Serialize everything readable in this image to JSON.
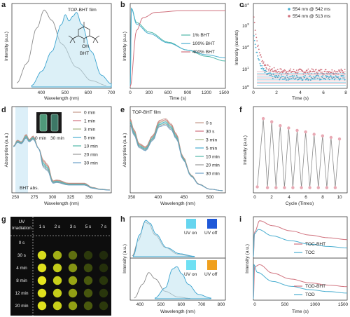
{
  "panels": {
    "a": {
      "letter": "a",
      "legend": "TOP-BHT film",
      "molecule_label": "BHT",
      "oh_label": "OH",
      "ylabel": "Intensity (a.u.)",
      "xlabel": "Wavelength (nm)",
      "xticks": [
        "400",
        "500",
        "600",
        "700"
      ]
    },
    "b": {
      "letter": "b",
      "ylabel": "Intensity (a.u.)",
      "xlabel": "Time (s)",
      "xticks": [
        "0",
        "300",
        "600",
        "900",
        "1200",
        "1500"
      ],
      "legend": [
        "1% BHT",
        "100% BHT",
        "400% BHT"
      ]
    },
    "c": {
      "letter": "c",
      "ylabel": "Intensity (counts)",
      "xlabel": "Time (s)",
      "xticks": [
        "0",
        "2",
        "4",
        "6",
        "8"
      ],
      "yticks": [
        {
          "b": "10",
          "e": "0"
        },
        {
          "b": "10",
          "e": "1"
        },
        {
          "b": "10",
          "e": "2"
        },
        {
          "b": "10",
          "e": "3"
        },
        {
          "b": "10",
          "e": "4"
        }
      ],
      "legend": [
        "554 nm @ 542 ms",
        "554 nm @ 513 ms"
      ]
    },
    "d": {
      "letter": "d",
      "ylabel": "Absorption (a.u.)",
      "xlabel": "Wavelength (nm)",
      "xticks": [
        "250",
        "275",
        "300",
        "325",
        "350"
      ],
      "legend": [
        "0 min",
        "1 min",
        "3 min",
        "5 min",
        "10 min",
        "20 min",
        "30 min"
      ],
      "vial_labels": [
        "0 min",
        "30 min"
      ],
      "annotation": "BHT abs."
    },
    "e": {
      "letter": "e",
      "legend_title": "TOP-BHT film",
      "ylabel": "Absorption (a.u.)",
      "xlabel": "Wavelength (nm)",
      "xticks": [
        "350",
        "400",
        "450",
        "500"
      ],
      "legend": [
        "0 s",
        "30 s",
        "3 min",
        "5 min",
        "10 min",
        "20 min",
        "30 min"
      ]
    },
    "f": {
      "letter": "f",
      "ylabel": "Intensity (a.u.)",
      "xlabel": "Cycle (Times)",
      "xticks": [
        "0",
        "2",
        "4",
        "6",
        "8",
        "10"
      ]
    },
    "g": {
      "letter": "g",
      "header_top": "UV",
      "header_bottom": "irradiation",
      "time_cols": [
        "1 s",
        "2 s",
        "3 s",
        "5 s",
        "7 s"
      ],
      "rows": [
        "0 s",
        "30 s",
        "4 min",
        "8 min",
        "12 min",
        "20 min"
      ]
    },
    "h": {
      "letter": "h",
      "ylabel": "Intensity (a.u.)",
      "xlabel": "Wavelength (nm)",
      "xticks": [
        "400",
        "500",
        "600",
        "700",
        "800"
      ],
      "labels": [
        "UV on",
        "UV off",
        "UV on",
        "UV off"
      ]
    },
    "i": {
      "letter": "i",
      "ylabel": "Intensity (a.u.)",
      "xlabel": "Time (s)",
      "xticks": [
        "0",
        "500",
        "1000",
        "1500"
      ],
      "legend_top": [
        "TOC-BHT",
        "TOC"
      ],
      "legend_bottom": [
        "TOD-BHT",
        "TOD"
      ]
    }
  },
  "colors": {
    "cyan": "#4aaed0",
    "gray": "#8a8a8a",
    "pink": "#d0727e",
    "teal": "#4fb7a8"
  },
  "chart_data": [
    {
      "type": "line",
      "panel": "a",
      "xlim": [
        300,
        700
      ],
      "series": [
        {
          "values": [
            [
              320,
              0.05
            ],
            [
              360,
              0.3
            ],
            [
              400,
              0.75
            ],
            [
              430,
              0.98
            ],
            [
              460,
              0.85
            ],
            [
              500,
              0.55
            ],
            [
              560,
              0.25
            ],
            [
              620,
              0.08
            ],
            [
              680,
              0.02
            ]
          ]
        },
        {
          "name": "TOP-BHT film",
          "values": [
            [
              380,
              0.02
            ],
            [
              420,
              0.2
            ],
            [
              460,
              0.45
            ],
            [
              500,
              0.8
            ],
            [
              515,
              0.92
            ],
            [
              530,
              0.84
            ],
            [
              545,
              0.9
            ],
            [
              560,
              0.95
            ],
            [
              580,
              0.8
            ],
            [
              620,
              0.45
            ],
            [
              660,
              0.15
            ],
            [
              700,
              0.04
            ]
          ]
        }
      ]
    },
    {
      "type": "line",
      "panel": "b",
      "xlim": [
        0,
        1500
      ],
      "series": [
        {
          "name": "1% BHT",
          "values": [
            [
              0,
              0
            ],
            [
              20,
              1
            ],
            [
              100,
              0.82
            ],
            [
              300,
              0.7
            ],
            [
              600,
              0.57
            ],
            [
              900,
              0.47
            ],
            [
              1200,
              0.39
            ],
            [
              1500,
              0.33
            ]
          ]
        },
        {
          "name": "100% BHT",
          "values": [
            [
              0,
              0
            ],
            [
              20,
              1
            ],
            [
              100,
              0.8
            ],
            [
              300,
              0.68
            ],
            [
              600,
              0.56
            ],
            [
              900,
              0.47
            ],
            [
              1200,
              0.41
            ],
            [
              1500,
              0.37
            ]
          ]
        },
        {
          "name": "400% BHT",
          "values": [
            [
              0,
              0
            ],
            [
              100,
              0.72
            ],
            [
              200,
              0.88
            ],
            [
              400,
              0.95
            ],
            [
              800,
              0.97
            ],
            [
              1500,
              0.97
            ]
          ]
        }
      ]
    },
    {
      "type": "scatter",
      "panel": "c",
      "xlim": [
        0,
        8
      ],
      "ylim_log": [
        0,
        4
      ],
      "series": [
        {
          "name": "554 nm @ 542 ms"
        },
        {
          "name": "554 nm @ 513 ms"
        }
      ]
    },
    {
      "type": "line",
      "panel": "f",
      "xlim": [
        0,
        10
      ],
      "series": [
        {
          "values": [
            [
              0.3,
              0.04
            ],
            [
              1,
              0.91
            ],
            [
              1.5,
              0.03
            ],
            [
              2,
              0.87
            ],
            [
              2.5,
              0.03
            ],
            [
              3,
              0.82
            ],
            [
              3.5,
              0.03
            ],
            [
              4,
              0.79
            ],
            [
              4.5,
              0.03
            ],
            [
              5,
              0.76
            ],
            [
              5.5,
              0.03
            ],
            [
              6,
              0.74
            ],
            [
              6.5,
              0.03
            ],
            [
              7,
              0.71
            ],
            [
              7.5,
              0.03
            ],
            [
              8,
              0.69
            ],
            [
              8.5,
              0.03
            ],
            [
              9,
              0.67
            ],
            [
              9.5,
              0.03
            ],
            [
              10,
              0.65
            ]
          ]
        }
      ]
    },
    {
      "type": "line",
      "panel": "i-top",
      "xlim": [
        0,
        1500
      ],
      "series": [
        {
          "name": "TOC-BHT"
        },
        {
          "name": "TOC"
        }
      ]
    },
    {
      "type": "line",
      "panel": "i-bottom",
      "xlim": [
        0,
        1500
      ],
      "series": [
        {
          "name": "TOD-BHT"
        },
        {
          "name": "TOD"
        }
      ]
    }
  ]
}
